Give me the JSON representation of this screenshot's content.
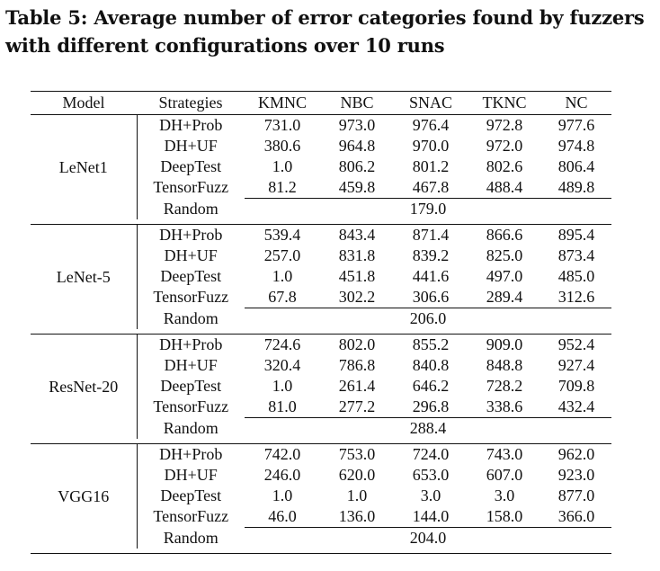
{
  "caption": "Table 5: Average number of error categories found by fuzzers with different configurations over 10 runs",
  "headers": [
    "Model",
    "Strategies",
    "KMNC",
    "NBC",
    "SNAC",
    "TKNC",
    "NC"
  ],
  "groups": [
    {
      "model": "LeNet1",
      "rows": [
        {
          "strategy": "DH+Prob",
          "values": [
            "731.0",
            "973.0",
            "976.4",
            "972.8",
            "977.6"
          ],
          "bold": [
            true,
            true,
            true,
            true,
            true
          ]
        },
        {
          "strategy": "DH+UF",
          "values": [
            "380.6",
            "964.8",
            "970.0",
            "972.0",
            "974.8"
          ],
          "bold": [
            false,
            false,
            false,
            false,
            false
          ]
        },
        {
          "strategy": "DeepTest",
          "values": [
            "1.0",
            "806.2",
            "801.2",
            "802.6",
            "806.4"
          ],
          "bold": [
            false,
            false,
            false,
            false,
            false
          ]
        },
        {
          "strategy": "TensorFuzz",
          "values": [
            "81.2",
            "459.8",
            "467.8",
            "488.4",
            "489.8"
          ],
          "bold": [
            false,
            false,
            false,
            false,
            false
          ]
        }
      ],
      "random": {
        "label": "Random",
        "value": "179.0"
      }
    },
    {
      "model": "LeNet-5",
      "rows": [
        {
          "strategy": "DH+Prob",
          "values": [
            "539.4",
            "843.4",
            "871.4",
            "866.6",
            "895.4"
          ],
          "bold": [
            true,
            true,
            true,
            true,
            true
          ]
        },
        {
          "strategy": "DH+UF",
          "values": [
            "257.0",
            "831.8",
            "839.2",
            "825.0",
            "873.4"
          ],
          "bold": [
            false,
            false,
            false,
            false,
            false
          ]
        },
        {
          "strategy": "DeepTest",
          "values": [
            "1.0",
            "451.8",
            "441.6",
            "497.0",
            "485.0"
          ],
          "bold": [
            false,
            false,
            false,
            false,
            false
          ]
        },
        {
          "strategy": "TensorFuzz",
          "values": [
            "67.8",
            "302.2",
            "306.6",
            "289.4",
            "312.6"
          ],
          "bold": [
            false,
            false,
            false,
            false,
            false
          ]
        }
      ],
      "random": {
        "label": "Random",
        "value": "206.0"
      }
    },
    {
      "model": "ResNet-20",
      "rows": [
        {
          "strategy": "DH+Prob",
          "values": [
            "724.6",
            "802.0",
            "855.2",
            "909.0",
            "952.4"
          ],
          "bold": [
            true,
            true,
            true,
            true,
            true
          ]
        },
        {
          "strategy": "DH+UF",
          "values": [
            "320.4",
            "786.8",
            "840.8",
            "848.8",
            "927.4"
          ],
          "bold": [
            false,
            false,
            false,
            false,
            false
          ]
        },
        {
          "strategy": "DeepTest",
          "values": [
            "1.0",
            "261.4",
            "646.2",
            "728.2",
            "709.8"
          ],
          "bold": [
            false,
            false,
            false,
            false,
            false
          ]
        },
        {
          "strategy": "TensorFuzz",
          "values": [
            "81.0",
            "277.2",
            "296.8",
            "338.6",
            "432.4"
          ],
          "bold": [
            false,
            false,
            false,
            false,
            false
          ]
        }
      ],
      "random": {
        "label": "Random",
        "value": "288.4"
      }
    },
    {
      "model": "VGG16",
      "rows": [
        {
          "strategy": "DH+Prob",
          "values": [
            "742.0",
            "753.0",
            "724.0",
            "743.0",
            "962.0"
          ],
          "bold": [
            true,
            true,
            true,
            true,
            true
          ]
        },
        {
          "strategy": "DH+UF",
          "values": [
            "246.0",
            "620.0",
            "653.0",
            "607.0",
            "923.0"
          ],
          "bold": [
            false,
            false,
            false,
            false,
            false
          ]
        },
        {
          "strategy": "DeepTest",
          "values": [
            "1.0",
            "1.0",
            "3.0",
            "3.0",
            "877.0"
          ],
          "bold": [
            false,
            false,
            false,
            false,
            false
          ]
        },
        {
          "strategy": "TensorFuzz",
          "values": [
            "46.0",
            "136.0",
            "144.0",
            "158.0",
            "366.0"
          ],
          "bold": [
            false,
            false,
            false,
            false,
            false
          ]
        }
      ],
      "random": {
        "label": "Random",
        "value": "204.0"
      }
    }
  ]
}
